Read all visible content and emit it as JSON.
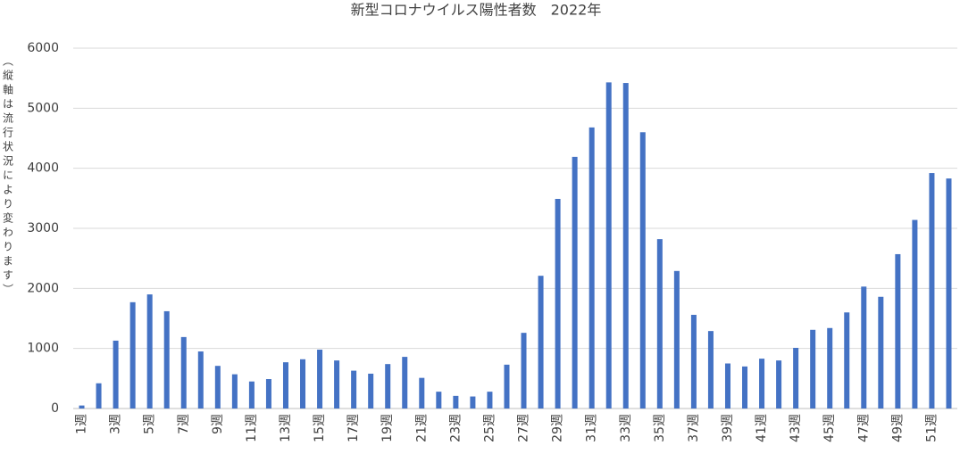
{
  "chart_data": {
    "type": "bar",
    "title": "新型コロナウイルス陽性者数　2022年",
    "y_label": "（縦軸は流行状況により変わります）",
    "categories": [
      "1週",
      null,
      "3週",
      null,
      "5週",
      null,
      "7週",
      null,
      "9週",
      null,
      "11週",
      null,
      "13週",
      null,
      "15週",
      null,
      "17週",
      null,
      "19週",
      null,
      "21週",
      null,
      "23週",
      null,
      "25週",
      null,
      "27週",
      null,
      "29週",
      null,
      "31週",
      null,
      "33週",
      null,
      "35週",
      null,
      "37週",
      null,
      "39週",
      null,
      "41週",
      null,
      "43週",
      null,
      "45週",
      null,
      "47週",
      null,
      "49週",
      null,
      "51週",
      null
    ],
    "values": [
      50,
      420,
      1130,
      1770,
      1900,
      1620,
      1190,
      950,
      710,
      570,
      450,
      490,
      770,
      820,
      980,
      800,
      630,
      580,
      740,
      860,
      510,
      280,
      210,
      200,
      280,
      730,
      1260,
      2210,
      3490,
      4190,
      4680,
      5430,
      5420,
      4600,
      2820,
      2290,
      1560,
      1290,
      750,
      700,
      830,
      800,
      1010,
      1310,
      1340,
      1600,
      2030,
      1860,
      2570,
      3140,
      3920,
      3830
    ],
    "color": "#4472c4",
    "ylim": [
      0,
      6000
    ],
    "yticks": [
      0,
      1000,
      2000,
      3000,
      4000,
      5000,
      6000
    ],
    "grid": true
  }
}
